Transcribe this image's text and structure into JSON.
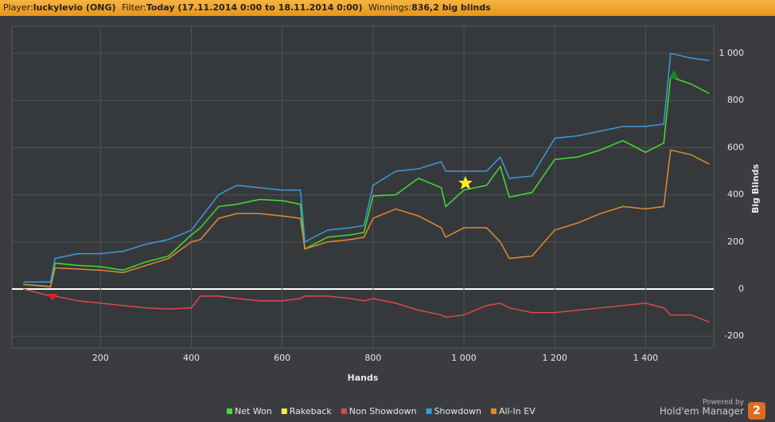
{
  "header": {
    "player_label": "Player:",
    "player": "luckylevio (ONG)",
    "filter_label": "Filter:",
    "filter": "Today (17.11.2014 0:00 to 18.11.2014 0:00)",
    "winnings_label": "Winnings:",
    "winnings": "836,2 big blinds"
  },
  "footer": {
    "powered": "Powered by",
    "brand": "Hold'em Manager",
    "badge": "2"
  },
  "chart_data": {
    "type": "line",
    "x_label": "Hands",
    "y_label": "Big Blinds",
    "x": [
      30,
      90,
      100,
      150,
      200,
      250,
      300,
      350,
      400,
      420,
      460,
      500,
      550,
      600,
      640,
      650,
      700,
      750,
      780,
      800,
      850,
      900,
      950,
      960,
      1000,
      1050,
      1080,
      1100,
      1150,
      1200,
      1250,
      1300,
      1350,
      1400,
      1440,
      1455,
      1500,
      1540
    ],
    "series": [
      {
        "name": "Net Won",
        "color": "#44dd33",
        "values": [
          20,
          10,
          110,
          100,
          95,
          80,
          115,
          140,
          230,
          260,
          350,
          360,
          380,
          375,
          360,
          170,
          220,
          230,
          240,
          395,
          400,
          470,
          430,
          350,
          420,
          440,
          520,
          390,
          410,
          550,
          560,
          590,
          630,
          580,
          620,
          900,
          870,
          830
        ]
      },
      {
        "name": "Rakeback",
        "color": "#eeee44"
      },
      {
        "name": "Non Showdown",
        "color": "#d94a4a",
        "values": [
          0,
          -30,
          -30,
          -50,
          -60,
          -70,
          -80,
          -85,
          -80,
          -30,
          -30,
          -40,
          -50,
          -50,
          -40,
          -30,
          -30,
          -40,
          -50,
          -40,
          -60,
          -90,
          -110,
          -120,
          -110,
          -70,
          -60,
          -80,
          -100,
          -100,
          -90,
          -80,
          -70,
          -60,
          -80,
          -110,
          -110,
          -140
        ]
      },
      {
        "name": "Showdown",
        "color": "#3a9ad9",
        "values": [
          30,
          30,
          130,
          150,
          150,
          160,
          190,
          210,
          250,
          300,
          400,
          440,
          430,
          420,
          420,
          200,
          250,
          260,
          270,
          440,
          500,
          510,
          540,
          500,
          500,
          500,
          560,
          470,
          480,
          640,
          650,
          670,
          690,
          690,
          700,
          1000,
          980,
          970
        ]
      },
      {
        "name": "All-In EV",
        "color": "#e08a30",
        "values": [
          20,
          10,
          90,
          85,
          80,
          70,
          100,
          130,
          200,
          210,
          300,
          320,
          320,
          310,
          300,
          170,
          200,
          210,
          220,
          300,
          340,
          310,
          260,
          220,
          260,
          260,
          200,
          130,
          140,
          250,
          280,
          320,
          350,
          340,
          350,
          590,
          570,
          530
        ]
      }
    ],
    "xlim": [
      5,
      1550
    ],
    "ylim": [
      -250,
      1115
    ],
    "xticks": [
      200,
      400,
      600,
      800,
      {
        "value": 1000,
        "label": "1 000"
      },
      {
        "value": 1200,
        "label": "1 200"
      },
      {
        "value": 1400,
        "label": "1 400"
      }
    ],
    "yticks": [
      -200,
      0,
      200,
      400,
      600,
      800,
      {
        "value": 1000,
        "label": "1 000"
      }
    ],
    "grid": true
  }
}
